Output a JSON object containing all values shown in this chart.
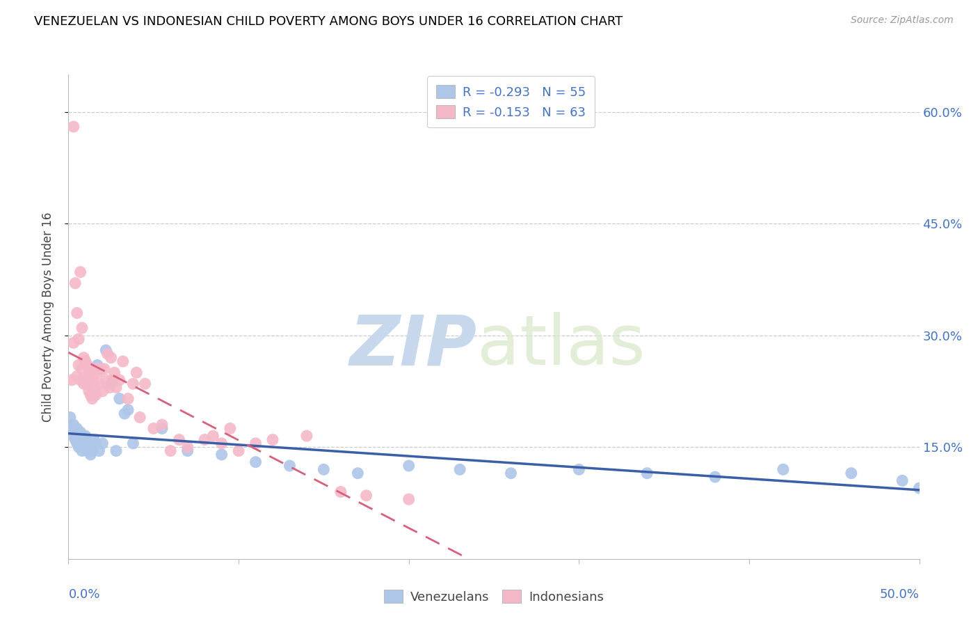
{
  "title": "VENEZUELAN VS INDONESIAN CHILD POVERTY AMONG BOYS UNDER 16 CORRELATION CHART",
  "source": "Source: ZipAtlas.com",
  "ylabel": "Child Poverty Among Boys Under 16",
  "ytick_vals": [
    0.15,
    0.3,
    0.45,
    0.6
  ],
  "ytick_labels": [
    "15.0%",
    "30.0%",
    "45.0%",
    "60.0%"
  ],
  "xlim": [
    0.0,
    0.5
  ],
  "ylim": [
    0.0,
    0.65
  ],
  "venezuelan_color": "#aec6e8",
  "indonesian_color": "#f4b8c8",
  "venezuelan_line_color": "#3a5fa8",
  "indonesian_line_color": "#d9607a",
  "legend_text_color": "#4472c4",
  "legend": {
    "venezuelan": {
      "R": "-0.293",
      "N": "55"
    },
    "indonesian": {
      "R": "-0.153",
      "N": "63"
    }
  },
  "venezuelan_x": [
    0.001,
    0.002,
    0.003,
    0.003,
    0.004,
    0.004,
    0.005,
    0.005,
    0.006,
    0.006,
    0.007,
    0.007,
    0.008,
    0.008,
    0.009,
    0.009,
    0.01,
    0.01,
    0.011,
    0.011,
    0.012,
    0.012,
    0.013,
    0.013,
    0.014,
    0.014,
    0.015,
    0.016,
    0.017,
    0.018,
    0.02,
    0.022,
    0.025,
    0.028,
    0.03,
    0.033,
    0.035,
    0.038,
    0.055,
    0.07,
    0.09,
    0.11,
    0.13,
    0.15,
    0.17,
    0.2,
    0.23,
    0.26,
    0.3,
    0.34,
    0.38,
    0.42,
    0.46,
    0.49,
    0.5
  ],
  "venezuelan_y": [
    0.19,
    0.175,
    0.165,
    0.18,
    0.17,
    0.16,
    0.155,
    0.175,
    0.16,
    0.15,
    0.155,
    0.17,
    0.165,
    0.145,
    0.16,
    0.155,
    0.15,
    0.165,
    0.145,
    0.155,
    0.155,
    0.15,
    0.145,
    0.14,
    0.15,
    0.145,
    0.16,
    0.155,
    0.26,
    0.145,
    0.155,
    0.28,
    0.235,
    0.145,
    0.215,
    0.195,
    0.2,
    0.155,
    0.175,
    0.145,
    0.14,
    0.13,
    0.125,
    0.12,
    0.115,
    0.125,
    0.12,
    0.115,
    0.12,
    0.115,
    0.11,
    0.12,
    0.115,
    0.105,
    0.095
  ],
  "indonesian_x": [
    0.002,
    0.003,
    0.003,
    0.004,
    0.005,
    0.005,
    0.006,
    0.006,
    0.007,
    0.007,
    0.008,
    0.008,
    0.009,
    0.009,
    0.01,
    0.01,
    0.011,
    0.011,
    0.012,
    0.012,
    0.013,
    0.013,
    0.014,
    0.014,
    0.015,
    0.015,
    0.016,
    0.016,
    0.017,
    0.018,
    0.019,
    0.02,
    0.021,
    0.022,
    0.023,
    0.024,
    0.025,
    0.026,
    0.027,
    0.028,
    0.03,
    0.032,
    0.035,
    0.038,
    0.04,
    0.042,
    0.045,
    0.05,
    0.055,
    0.06,
    0.065,
    0.07,
    0.08,
    0.085,
    0.09,
    0.095,
    0.1,
    0.11,
    0.12,
    0.14,
    0.16,
    0.175,
    0.2
  ],
  "indonesian_y": [
    0.24,
    0.29,
    0.58,
    0.37,
    0.245,
    0.33,
    0.295,
    0.26,
    0.385,
    0.24,
    0.31,
    0.255,
    0.27,
    0.235,
    0.265,
    0.24,
    0.26,
    0.235,
    0.25,
    0.225,
    0.245,
    0.22,
    0.245,
    0.215,
    0.235,
    0.22,
    0.255,
    0.22,
    0.25,
    0.235,
    0.255,
    0.225,
    0.255,
    0.24,
    0.275,
    0.23,
    0.27,
    0.24,
    0.25,
    0.23,
    0.24,
    0.265,
    0.215,
    0.235,
    0.25,
    0.19,
    0.235,
    0.175,
    0.18,
    0.145,
    0.16,
    0.15,
    0.16,
    0.165,
    0.155,
    0.175,
    0.145,
    0.155,
    0.16,
    0.165,
    0.09,
    0.085,
    0.08
  ]
}
